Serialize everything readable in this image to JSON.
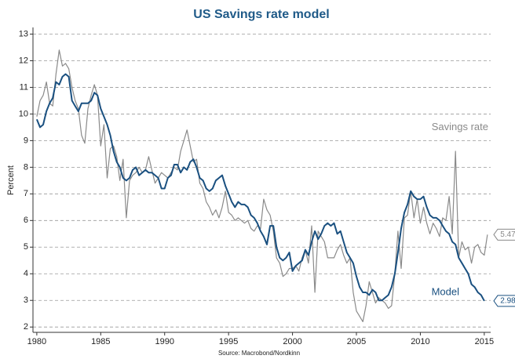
{
  "chart_data": {
    "type": "line",
    "title": "US Savings rate model",
    "y_label": "Percent",
    "source": "Source: Macrobond/Nordkinn",
    "x": [
      1980,
      1980.25,
      1980.5,
      1980.75,
      1981,
      1981.25,
      1981.5,
      1981.75,
      1982,
      1982.25,
      1982.5,
      1982.75,
      1983,
      1983.25,
      1983.5,
      1983.75,
      1984,
      1984.25,
      1984.5,
      1984.75,
      1985,
      1985.25,
      1985.5,
      1985.75,
      1986,
      1986.25,
      1986.5,
      1986.75,
      1987,
      1987.25,
      1987.5,
      1987.75,
      1988,
      1988.25,
      1988.5,
      1988.75,
      1989,
      1989.25,
      1989.5,
      1989.75,
      1990,
      1990.25,
      1990.5,
      1990.75,
      1991,
      1991.25,
      1991.5,
      1991.75,
      1992,
      1992.25,
      1992.5,
      1992.75,
      1993,
      1993.25,
      1993.5,
      1993.75,
      1994,
      1994.25,
      1994.5,
      1994.75,
      1995,
      1995.25,
      1995.5,
      1995.75,
      1996,
      1996.25,
      1996.5,
      1996.75,
      1997,
      1997.25,
      1997.5,
      1997.75,
      1998,
      1998.25,
      1998.5,
      1998.75,
      1999,
      1999.25,
      1999.5,
      1999.75,
      2000,
      2000.25,
      2000.5,
      2000.75,
      2001,
      2001.25,
      2001.5,
      2001.75,
      2002,
      2002.25,
      2002.5,
      2002.75,
      2003,
      2003.25,
      2003.5,
      2003.75,
      2004,
      2004.25,
      2004.5,
      2004.75,
      2005,
      2005.25,
      2005.5,
      2005.75,
      2006,
      2006.25,
      2006.5,
      2006.75,
      2007,
      2007.25,
      2007.5,
      2007.75,
      2008,
      2008.25,
      2008.5,
      2008.75,
      2009,
      2009.25,
      2009.5,
      2009.75,
      2010,
      2010.25,
      2010.5,
      2010.75,
      2011,
      2011.25,
      2011.5,
      2011.75,
      2012,
      2012.25,
      2012.5,
      2012.75,
      2013,
      2013.25,
      2013.5,
      2013.75,
      2014,
      2014.25,
      2014.5,
      2014.75,
      2015,
      2015.25
    ],
    "series": [
      {
        "name": "Savings rate",
        "color": "#8a8a8a",
        "values": [
          9.9,
          10.5,
          10.7,
          11.2,
          10.4,
          10.3,
          11.5,
          12.4,
          11.8,
          11.9,
          11.7,
          11.0,
          10.5,
          10.2,
          9.2,
          8.9,
          10.2,
          10.7,
          11.1,
          10.7,
          8.8,
          9.6,
          7.6,
          8.7,
          8.8,
          8.4,
          7.5,
          8.3,
          6.1,
          7.5,
          7.7,
          7.8,
          8.0,
          7.8,
          7.9,
          8.4,
          7.9,
          7.4,
          7.6,
          7.8,
          7.7,
          7.6,
          7.8,
          8.0,
          7.9,
          8.6,
          9.0,
          9.4,
          8.8,
          8.2,
          8.3,
          7.4,
          7.2,
          6.7,
          6.5,
          6.2,
          6.4,
          6.1,
          6.5,
          7.1,
          6.3,
          6.2,
          6.0,
          6.1,
          6.0,
          5.9,
          6.0,
          5.7,
          5.6,
          5.8,
          5.7,
          6.8,
          6.4,
          6.2,
          5.6,
          4.6,
          4.4,
          3.9,
          4.0,
          4.2,
          4.2,
          4.3,
          4.1,
          4.6,
          4.9,
          4.4,
          5.8,
          3.3,
          5.6,
          5.4,
          5.2,
          4.6,
          4.6,
          4.6,
          4.9,
          5.1,
          4.7,
          4.4,
          4.6,
          3.3,
          2.6,
          2.4,
          2.2,
          2.8,
          3.7,
          3.3,
          2.9,
          3.1,
          3.0,
          2.9,
          2.7,
          2.8,
          4.0,
          5.6,
          4.2,
          6.1,
          6.2,
          7.1,
          6.1,
          6.8,
          5.9,
          6.5,
          5.9,
          5.5,
          5.9,
          5.7,
          5.4,
          6.1,
          6.0,
          6.9,
          5.5,
          8.6,
          4.6,
          5.2,
          4.9,
          5.0,
          4.4,
          5.0,
          5.1,
          4.8,
          4.7,
          5.47
        ]
      },
      {
        "name": "Model",
        "color": "#1a5080",
        "values": [
          9.8,
          9.5,
          9.6,
          10.1,
          10.4,
          10.6,
          11.2,
          11.1,
          11.4,
          11.5,
          11.4,
          10.5,
          10.3,
          10.1,
          10.4,
          10.4,
          10.4,
          10.5,
          10.8,
          10.7,
          10.2,
          9.9,
          9.6,
          9.2,
          8.6,
          8.2,
          8.0,
          7.6,
          7.5,
          7.6,
          7.9,
          8.0,
          7.7,
          7.8,
          7.9,
          7.8,
          7.8,
          7.7,
          7.6,
          7.2,
          7.2,
          7.6,
          7.7,
          8.1,
          8.1,
          7.8,
          8.0,
          7.9,
          8.2,
          8.3,
          8.0,
          7.6,
          7.5,
          7.2,
          7.1,
          7.2,
          7.5,
          7.6,
          7.7,
          7.3,
          7.0,
          6.7,
          6.5,
          6.7,
          6.6,
          6.6,
          6.5,
          6.2,
          6.1,
          5.9,
          5.6,
          5.4,
          5.1,
          5.8,
          5.8,
          5.0,
          4.6,
          4.5,
          4.6,
          4.8,
          4.1,
          4.3,
          4.4,
          4.5,
          4.9,
          4.7,
          5.2,
          5.6,
          5.3,
          5.5,
          5.8,
          5.9,
          5.8,
          5.9,
          5.5,
          5.6,
          5.2,
          4.8,
          4.6,
          4.4,
          3.9,
          3.5,
          3.3,
          3.3,
          3.2,
          3.4,
          3.3,
          3.0,
          3.0,
          3.1,
          3.2,
          3.5,
          4.0,
          4.8,
          5.7,
          6.3,
          6.6,
          7.1,
          6.9,
          6.8,
          6.8,
          6.9,
          6.5,
          6.2,
          6.1,
          6.1,
          6.0,
          5.8,
          5.6,
          5.5,
          5.2,
          5.1,
          4.6,
          4.4,
          4.2,
          4.0,
          3.6,
          3.5,
          3.3,
          3.2,
          2.98,
          null
        ]
      }
    ],
    "xlim": [
      1979.7,
      2015.5
    ],
    "xticks": [
      1980,
      1985,
      1990,
      1995,
      2000,
      2005,
      2010,
      2015
    ],
    "ylim": [
      1.8,
      13.25
    ],
    "yticks": [
      2,
      3,
      4,
      5,
      6,
      7,
      8,
      9,
      10,
      11,
      12,
      13
    ],
    "grid": true
  }
}
